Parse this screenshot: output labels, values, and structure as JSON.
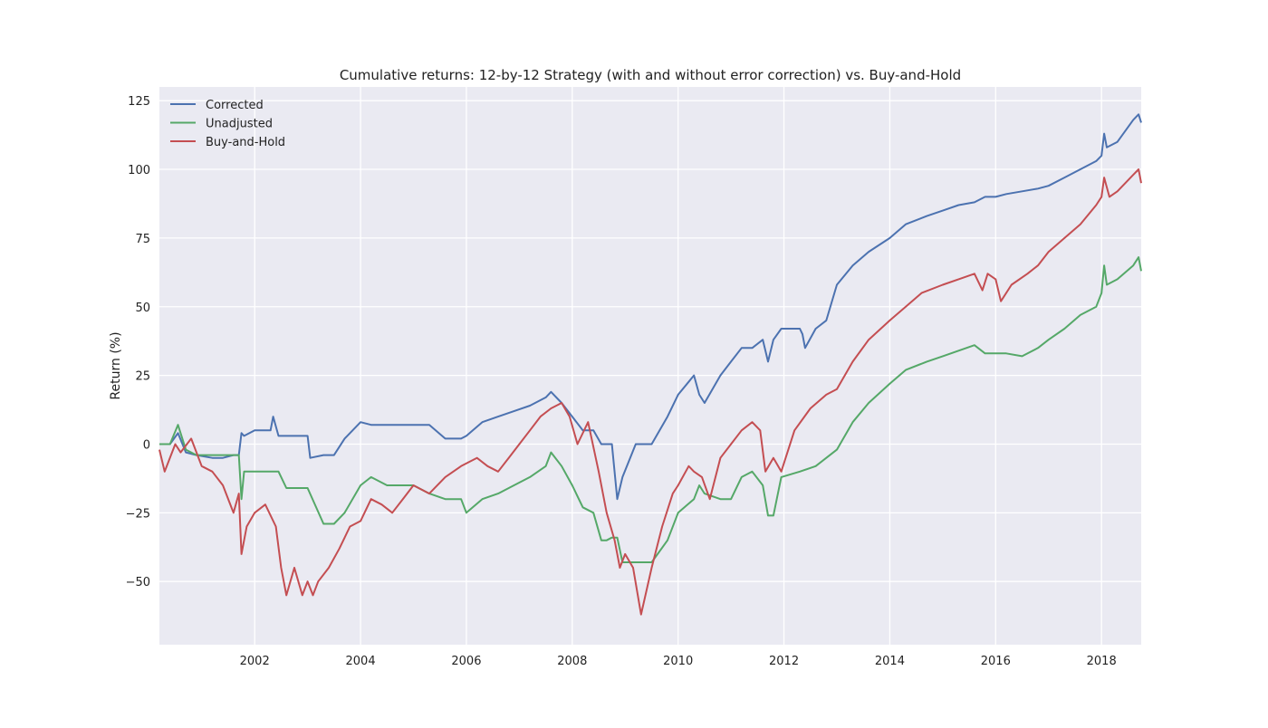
{
  "chart_data": {
    "type": "line",
    "title": "Cumulative returns: 12-by-12 Strategy (with and without error correction) vs. Buy-and-Hold",
    "xlabel": "",
    "ylabel": "Return (%)",
    "xlim": [
      2000.2,
      2018.75
    ],
    "ylim": [
      -73,
      130
    ],
    "x_ticks": [
      2002,
      2004,
      2006,
      2008,
      2010,
      2012,
      2014,
      2016,
      2018
    ],
    "x_tick_labels": [
      "2002",
      "2004",
      "2006",
      "2008",
      "2010",
      "2012",
      "2014",
      "2016",
      "2018"
    ],
    "y_ticks": [
      -50,
      -25,
      0,
      25,
      50,
      75,
      100,
      125
    ],
    "y_tick_labels": [
      "−50",
      "−25",
      "0",
      "25",
      "50",
      "75",
      "100",
      "125"
    ],
    "grid": true,
    "legend_position": "top-left",
    "background": "#eaeaf2",
    "series": [
      {
        "name": "Corrected",
        "color": "#4c72b0",
        "x": [
          2000.2,
          2000.4,
          2000.55,
          2000.7,
          2000.9,
          2001.2,
          2001.4,
          2001.6,
          2001.7,
          2001.75,
          2001.8,
          2002.0,
          2002.3,
          2002.35,
          2002.45,
          2002.6,
          2002.8,
          2003.0,
          2003.05,
          2003.3,
          2003.5,
          2003.7,
          2004.0,
          2004.2,
          2004.5,
          2004.8,
          2005.0,
          2005.3,
          2005.6,
          2005.9,
          2006.0,
          2006.3,
          2006.6,
          2006.9,
          2007.2,
          2007.5,
          2007.6,
          2007.8,
          2008.0,
          2008.2,
          2008.4,
          2008.55,
          2008.65,
          2008.75,
          2008.85,
          2008.95,
          2009.2,
          2009.5,
          2009.8,
          2010.0,
          2010.3,
          2010.4,
          2010.5,
          2010.8,
          2011.0,
          2011.2,
          2011.4,
          2011.6,
          2011.7,
          2011.8,
          2011.95,
          2012.3,
          2012.35,
          2012.4,
          2012.6,
          2012.8,
          2013.0,
          2013.3,
          2013.6,
          2014.0,
          2014.3,
          2014.7,
          2015.0,
          2015.3,
          2015.6,
          2015.8,
          2016.0,
          2016.2,
          2016.5,
          2016.8,
          2017.0,
          2017.3,
          2017.6,
          2017.9,
          2018.0,
          2018.05,
          2018.1,
          2018.3,
          2018.6,
          2018.7,
          2018.75
        ],
        "y": [
          0,
          0,
          4,
          -3,
          -4,
          -5,
          -5,
          -4,
          -4,
          4,
          3,
          5,
          5,
          10,
          3,
          3,
          3,
          3,
          -5,
          -4,
          -4,
          2,
          8,
          7,
          7,
          7,
          7,
          7,
          2,
          2,
          3,
          8,
          10,
          12,
          14,
          17,
          19,
          15,
          10,
          5,
          5,
          0,
          0,
          0,
          -20,
          -12,
          0,
          0,
          10,
          18,
          25,
          18,
          15,
          25,
          30,
          35,
          35,
          38,
          30,
          38,
          42,
          42,
          40,
          35,
          42,
          45,
          58,
          65,
          70,
          75,
          80,
          83,
          85,
          87,
          88,
          90,
          90,
          91,
          92,
          93,
          94,
          97,
          100,
          103,
          105,
          113,
          108,
          110,
          118,
          120,
          117
        ]
      },
      {
        "name": "Unadjusted",
        "color": "#55a868",
        "x": [
          2000.2,
          2000.4,
          2000.55,
          2000.7,
          2000.9,
          2001.2,
          2001.4,
          2001.6,
          2001.7,
          2001.75,
          2001.8,
          2002.0,
          2002.3,
          2002.45,
          2002.6,
          2002.8,
          2003.0,
          2003.3,
          2003.5,
          2003.7,
          2004.0,
          2004.2,
          2004.5,
          2004.8,
          2005.0,
          2005.3,
          2005.6,
          2005.9,
          2006.0,
          2006.3,
          2006.6,
          2006.9,
          2007.2,
          2007.5,
          2007.6,
          2007.8,
          2008.0,
          2008.2,
          2008.4,
          2008.55,
          2008.65,
          2008.75,
          2008.85,
          2008.95,
          2009.2,
          2009.5,
          2009.8,
          2010.0,
          2010.3,
          2010.4,
          2010.5,
          2010.8,
          2011.0,
          2011.2,
          2011.4,
          2011.6,
          2011.7,
          2011.8,
          2011.95,
          2012.3,
          2012.6,
          2012.8,
          2013.0,
          2013.3,
          2013.6,
          2014.0,
          2014.3,
          2014.7,
          2015.0,
          2015.3,
          2015.6,
          2015.8,
          2016.0,
          2016.2,
          2016.5,
          2016.8,
          2017.0,
          2017.3,
          2017.6,
          2017.9,
          2018.0,
          2018.05,
          2018.1,
          2018.3,
          2018.6,
          2018.7,
          2018.75
        ],
        "y": [
          0,
          0,
          7,
          -2,
          -4,
          -4,
          -4,
          -4,
          -4,
          -20,
          -10,
          -10,
          -10,
          -10,
          -16,
          -16,
          -16,
          -29,
          -29,
          -25,
          -15,
          -12,
          -15,
          -15,
          -15,
          -18,
          -20,
          -20,
          -25,
          -20,
          -18,
          -15,
          -12,
          -8,
          -3,
          -8,
          -15,
          -23,
          -25,
          -35,
          -35,
          -34,
          -34,
          -43,
          -43,
          -43,
          -35,
          -25,
          -20,
          -15,
          -18,
          -20,
          -20,
          -12,
          -10,
          -15,
          -26,
          -26,
          -12,
          -10,
          -8,
          -5,
          -2,
          8,
          15,
          22,
          27,
          30,
          32,
          34,
          36,
          33,
          33,
          33,
          32,
          35,
          38,
          42,
          47,
          50,
          55,
          65,
          58,
          60,
          65,
          68,
          63
        ]
      },
      {
        "name": "Buy-and-Hold",
        "color": "#c44e52",
        "x": [
          2000.2,
          2000.3,
          2000.5,
          2000.6,
          2000.8,
          2001.0,
          2001.2,
          2001.4,
          2001.6,
          2001.7,
          2001.75,
          2001.85,
          2002.0,
          2002.2,
          2002.4,
          2002.5,
          2002.6,
          2002.75,
          2002.9,
          2003.0,
          2003.1,
          2003.2,
          2003.4,
          2003.6,
          2003.8,
          2004.0,
          2004.2,
          2004.4,
          2004.6,
          2004.8,
          2005.0,
          2005.3,
          2005.6,
          2005.9,
          2006.2,
          2006.4,
          2006.6,
          2006.8,
          2007.0,
          2007.2,
          2007.4,
          2007.6,
          2007.8,
          2007.95,
          2008.1,
          2008.3,
          2008.5,
          2008.65,
          2008.8,
          2008.9,
          2009.0,
          2009.15,
          2009.3,
          2009.5,
          2009.7,
          2009.9,
          2010.0,
          2010.2,
          2010.3,
          2010.45,
          2010.6,
          2010.8,
          2011.0,
          2011.2,
          2011.4,
          2011.55,
          2011.65,
          2011.8,
          2011.95,
          2012.2,
          2012.5,
          2012.8,
          2013.0,
          2013.3,
          2013.6,
          2014.0,
          2014.3,
          2014.6,
          2015.0,
          2015.3,
          2015.6,
          2015.75,
          2015.85,
          2016.0,
          2016.1,
          2016.3,
          2016.6,
          2016.8,
          2017.0,
          2017.3,
          2017.6,
          2017.9,
          2018.0,
          2018.05,
          2018.15,
          2018.3,
          2018.6,
          2018.7,
          2018.75
        ],
        "y": [
          -2,
          -10,
          0,
          -3,
          2,
          -8,
          -10,
          -15,
          -25,
          -18,
          -40,
          -30,
          -25,
          -22,
          -30,
          -45,
          -55,
          -45,
          -55,
          -50,
          -55,
          -50,
          -45,
          -38,
          -30,
          -28,
          -20,
          -22,
          -25,
          -20,
          -15,
          -18,
          -12,
          -8,
          -5,
          -8,
          -10,
          -5,
          0,
          5,
          10,
          13,
          15,
          10,
          0,
          8,
          -10,
          -25,
          -35,
          -45,
          -40,
          -45,
          -62,
          -45,
          -30,
          -18,
          -15,
          -8,
          -10,
          -12,
          -20,
          -5,
          0,
          5,
          8,
          5,
          -10,
          -5,
          -10,
          5,
          13,
          18,
          20,
          30,
          38,
          45,
          50,
          55,
          58,
          60,
          62,
          56,
          62,
          60,
          52,
          58,
          62,
          65,
          70,
          75,
          80,
          87,
          90,
          97,
          90,
          92,
          98,
          100,
          95
        ]
      }
    ]
  }
}
